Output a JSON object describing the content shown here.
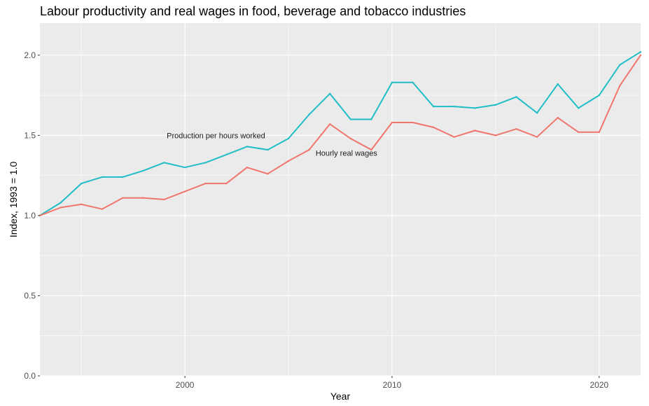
{
  "chart_data": {
    "type": "line",
    "title": "Labour productivity and real wages in food, beverage and tobacco industries",
    "xlabel": "Year",
    "ylabel": "Index, 1993 = 1.0",
    "xlim": [
      1993,
      2022
    ],
    "ylim": [
      0,
      2.2
    ],
    "x_ticks": [
      2000,
      2010,
      2020
    ],
    "x_tick_labels": [
      "2000",
      "2010",
      "2020"
    ],
    "y_ticks": [
      0,
      0.5,
      1.0,
      1.5,
      2.0
    ],
    "y_tick_labels": [
      "0.0",
      "0.5",
      "1.0",
      "1.5",
      "2.0"
    ],
    "grid": true,
    "legend": "none",
    "colors": {
      "panel": "#ebebeb",
      "grid": "#ffffff",
      "productivity": "#1fbec6",
      "wages": "#f0766d"
    },
    "x": [
      1993,
      1994,
      1995,
      1996,
      1997,
      1998,
      1999,
      2000,
      2001,
      2002,
      2003,
      2004,
      2005,
      2006,
      2007,
      2008,
      2009,
      2010,
      2011,
      2012,
      2013,
      2014,
      2015,
      2016,
      2017,
      2018,
      2019,
      2020,
      2021,
      2022
    ],
    "series": [
      {
        "key": "productivity",
        "name": "Production per hours worked",
        "values": [
          1.0,
          1.08,
          1.2,
          1.24,
          1.24,
          1.28,
          1.33,
          1.3,
          1.33,
          1.38,
          1.43,
          1.41,
          1.48,
          1.63,
          1.76,
          1.6,
          1.6,
          1.83,
          1.83,
          1.68,
          1.68,
          1.67,
          1.69,
          1.74,
          1.64,
          1.82,
          1.67,
          1.75,
          1.94,
          2.02
        ]
      },
      {
        "key": "wages",
        "name": "Hourly real wages",
        "values": [
          1.0,
          1.05,
          1.07,
          1.04,
          1.11,
          1.11,
          1.1,
          1.15,
          1.2,
          1.2,
          1.3,
          1.26,
          1.34,
          1.41,
          1.57,
          1.48,
          1.41,
          1.58,
          1.58,
          1.55,
          1.49,
          1.53,
          1.5,
          1.54,
          1.49,
          1.61,
          1.52,
          1.52,
          1.81,
          2.0
        ]
      }
    ],
    "annotations": [
      {
        "text": "Production per hours worked",
        "series": "productivity",
        "x": 2001.5,
        "y": 1.5
      },
      {
        "text": "Hourly real wages",
        "series": "wages",
        "x": 2007.8,
        "y": 1.39
      }
    ]
  }
}
